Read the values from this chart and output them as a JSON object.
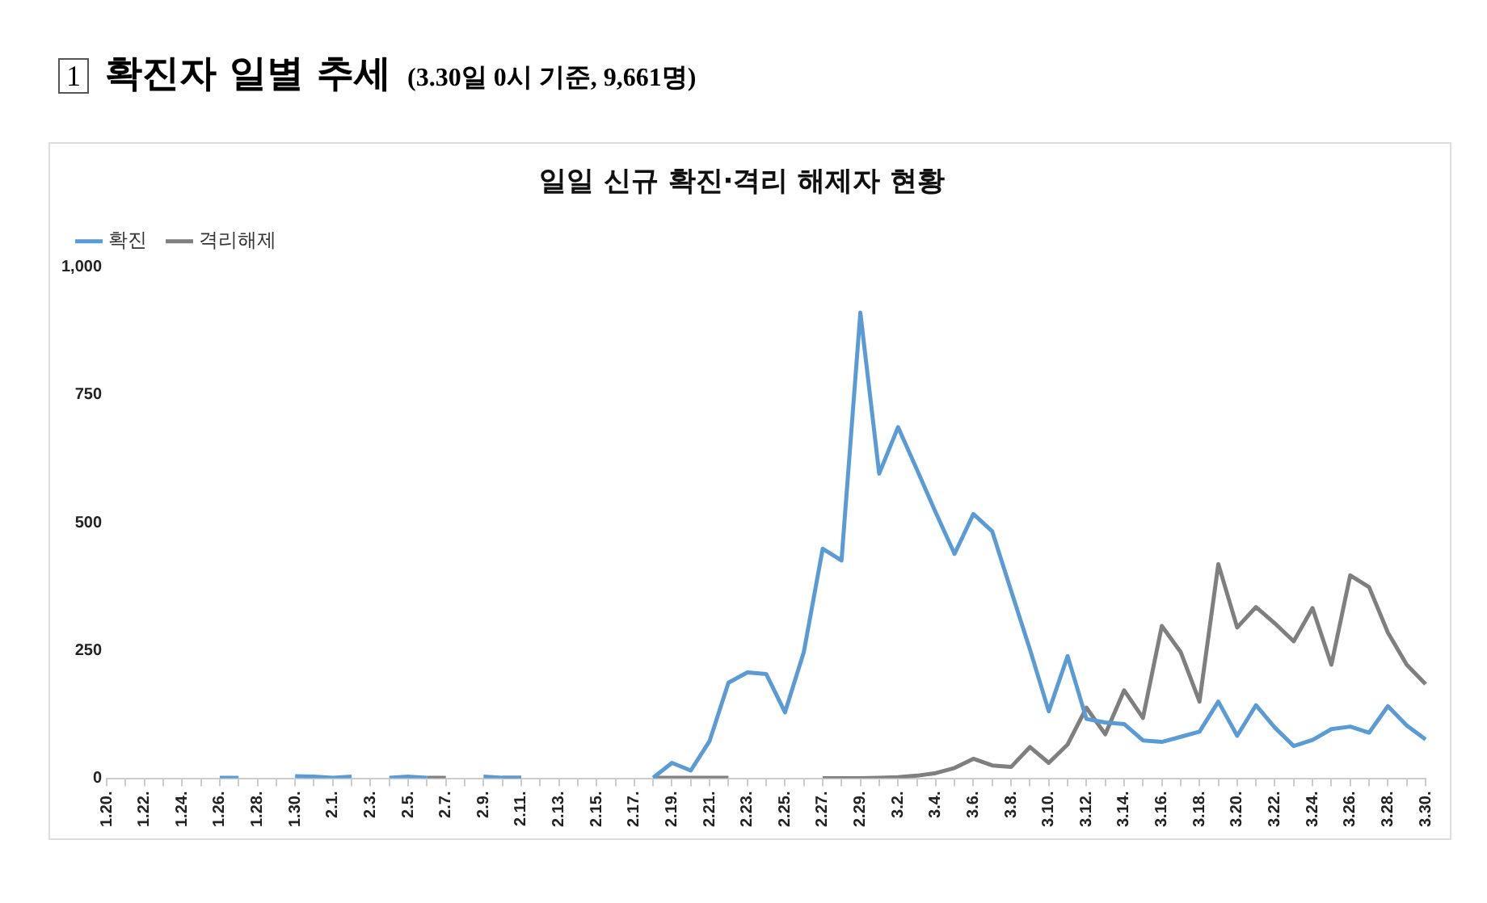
{
  "chart_data": {
    "type": "line",
    "title": "일일 신규 확진·격리 해제자 현황",
    "annotations": [
      "1",
      "확진자 일별 추세",
      "(3.30일 0시 기준, 9,661명)"
    ],
    "categories": [
      "1.20.",
      null,
      "1.22.",
      null,
      "1.24.",
      null,
      "1.26.",
      null,
      "1.28.",
      null,
      "1.30.",
      null,
      "2.1.",
      null,
      "2.3.",
      null,
      "2.5.",
      null,
      "2.7.",
      null,
      "2.9.",
      null,
      "2.11.",
      null,
      "2.13.",
      null,
      "2.15.",
      null,
      "2.17.",
      null,
      "2.19.",
      null,
      "2.21.",
      null,
      "2.23.",
      null,
      "2.25.",
      null,
      "2.27.",
      null,
      "2.29.",
      null,
      "3.2.",
      null,
      "3.4.",
      null,
      "3.6.",
      null,
      "3.8.",
      null,
      "3.10.",
      null,
      "3.12.",
      null,
      "3.14.",
      null,
      "3.16.",
      null,
      "3.18.",
      null,
      "3.20.",
      null,
      "3.22.",
      null,
      "3.24.",
      null,
      "3.26.",
      null,
      "3.28.",
      null,
      "3.30."
    ],
    "series": [
      {
        "name": "확진",
        "color": "#5b9bd5",
        "values": [
          null,
          null,
          null,
          null,
          null,
          null,
          1,
          1,
          null,
          null,
          4,
          3,
          1,
          3,
          null,
          1,
          3,
          1,
          null,
          null,
          3,
          1,
          1,
          null,
          null,
          null,
          null,
          null,
          null,
          1,
          30,
          15,
          73,
          187,
          207,
          204,
          129,
          247,
          449,
          426,
          911,
          596,
          687,
          604,
          520,
          439,
          517,
          483,
          367,
          252,
          131,
          239,
          116,
          109,
          106,
          74,
          71,
          81,
          91,
          150,
          83,
          143,
          99,
          63,
          75,
          96,
          101,
          89,
          141,
          103,
          76
        ]
      },
      {
        "name": "격리해제",
        "color": "#7f7f7f",
        "values": [
          null,
          null,
          null,
          null,
          null,
          null,
          null,
          null,
          null,
          null,
          null,
          null,
          null,
          null,
          null,
          null,
          null,
          1,
          1,
          null,
          null,
          1,
          1,
          null,
          null,
          null,
          null,
          null,
          null,
          1,
          1,
          1,
          1,
          1,
          null,
          null,
          null,
          null,
          0,
          0,
          0,
          1,
          2,
          5,
          10,
          20,
          38,
          25,
          22,
          61,
          30,
          66,
          138,
          86,
          172,
          118,
          298,
          247,
          150,
          419,
          295,
          335,
          303,
          268,
          333,
          222,
          397,
          374,
          285,
          222,
          184
        ]
      }
    ],
    "ylim": [
      0,
      1000
    ],
    "yticks": [
      0,
      250,
      500,
      750,
      {
        "value": 1000,
        "label": "1,000"
      }
    ],
    "legend": "top left",
    "marker": "none",
    "line_style": "solid"
  }
}
